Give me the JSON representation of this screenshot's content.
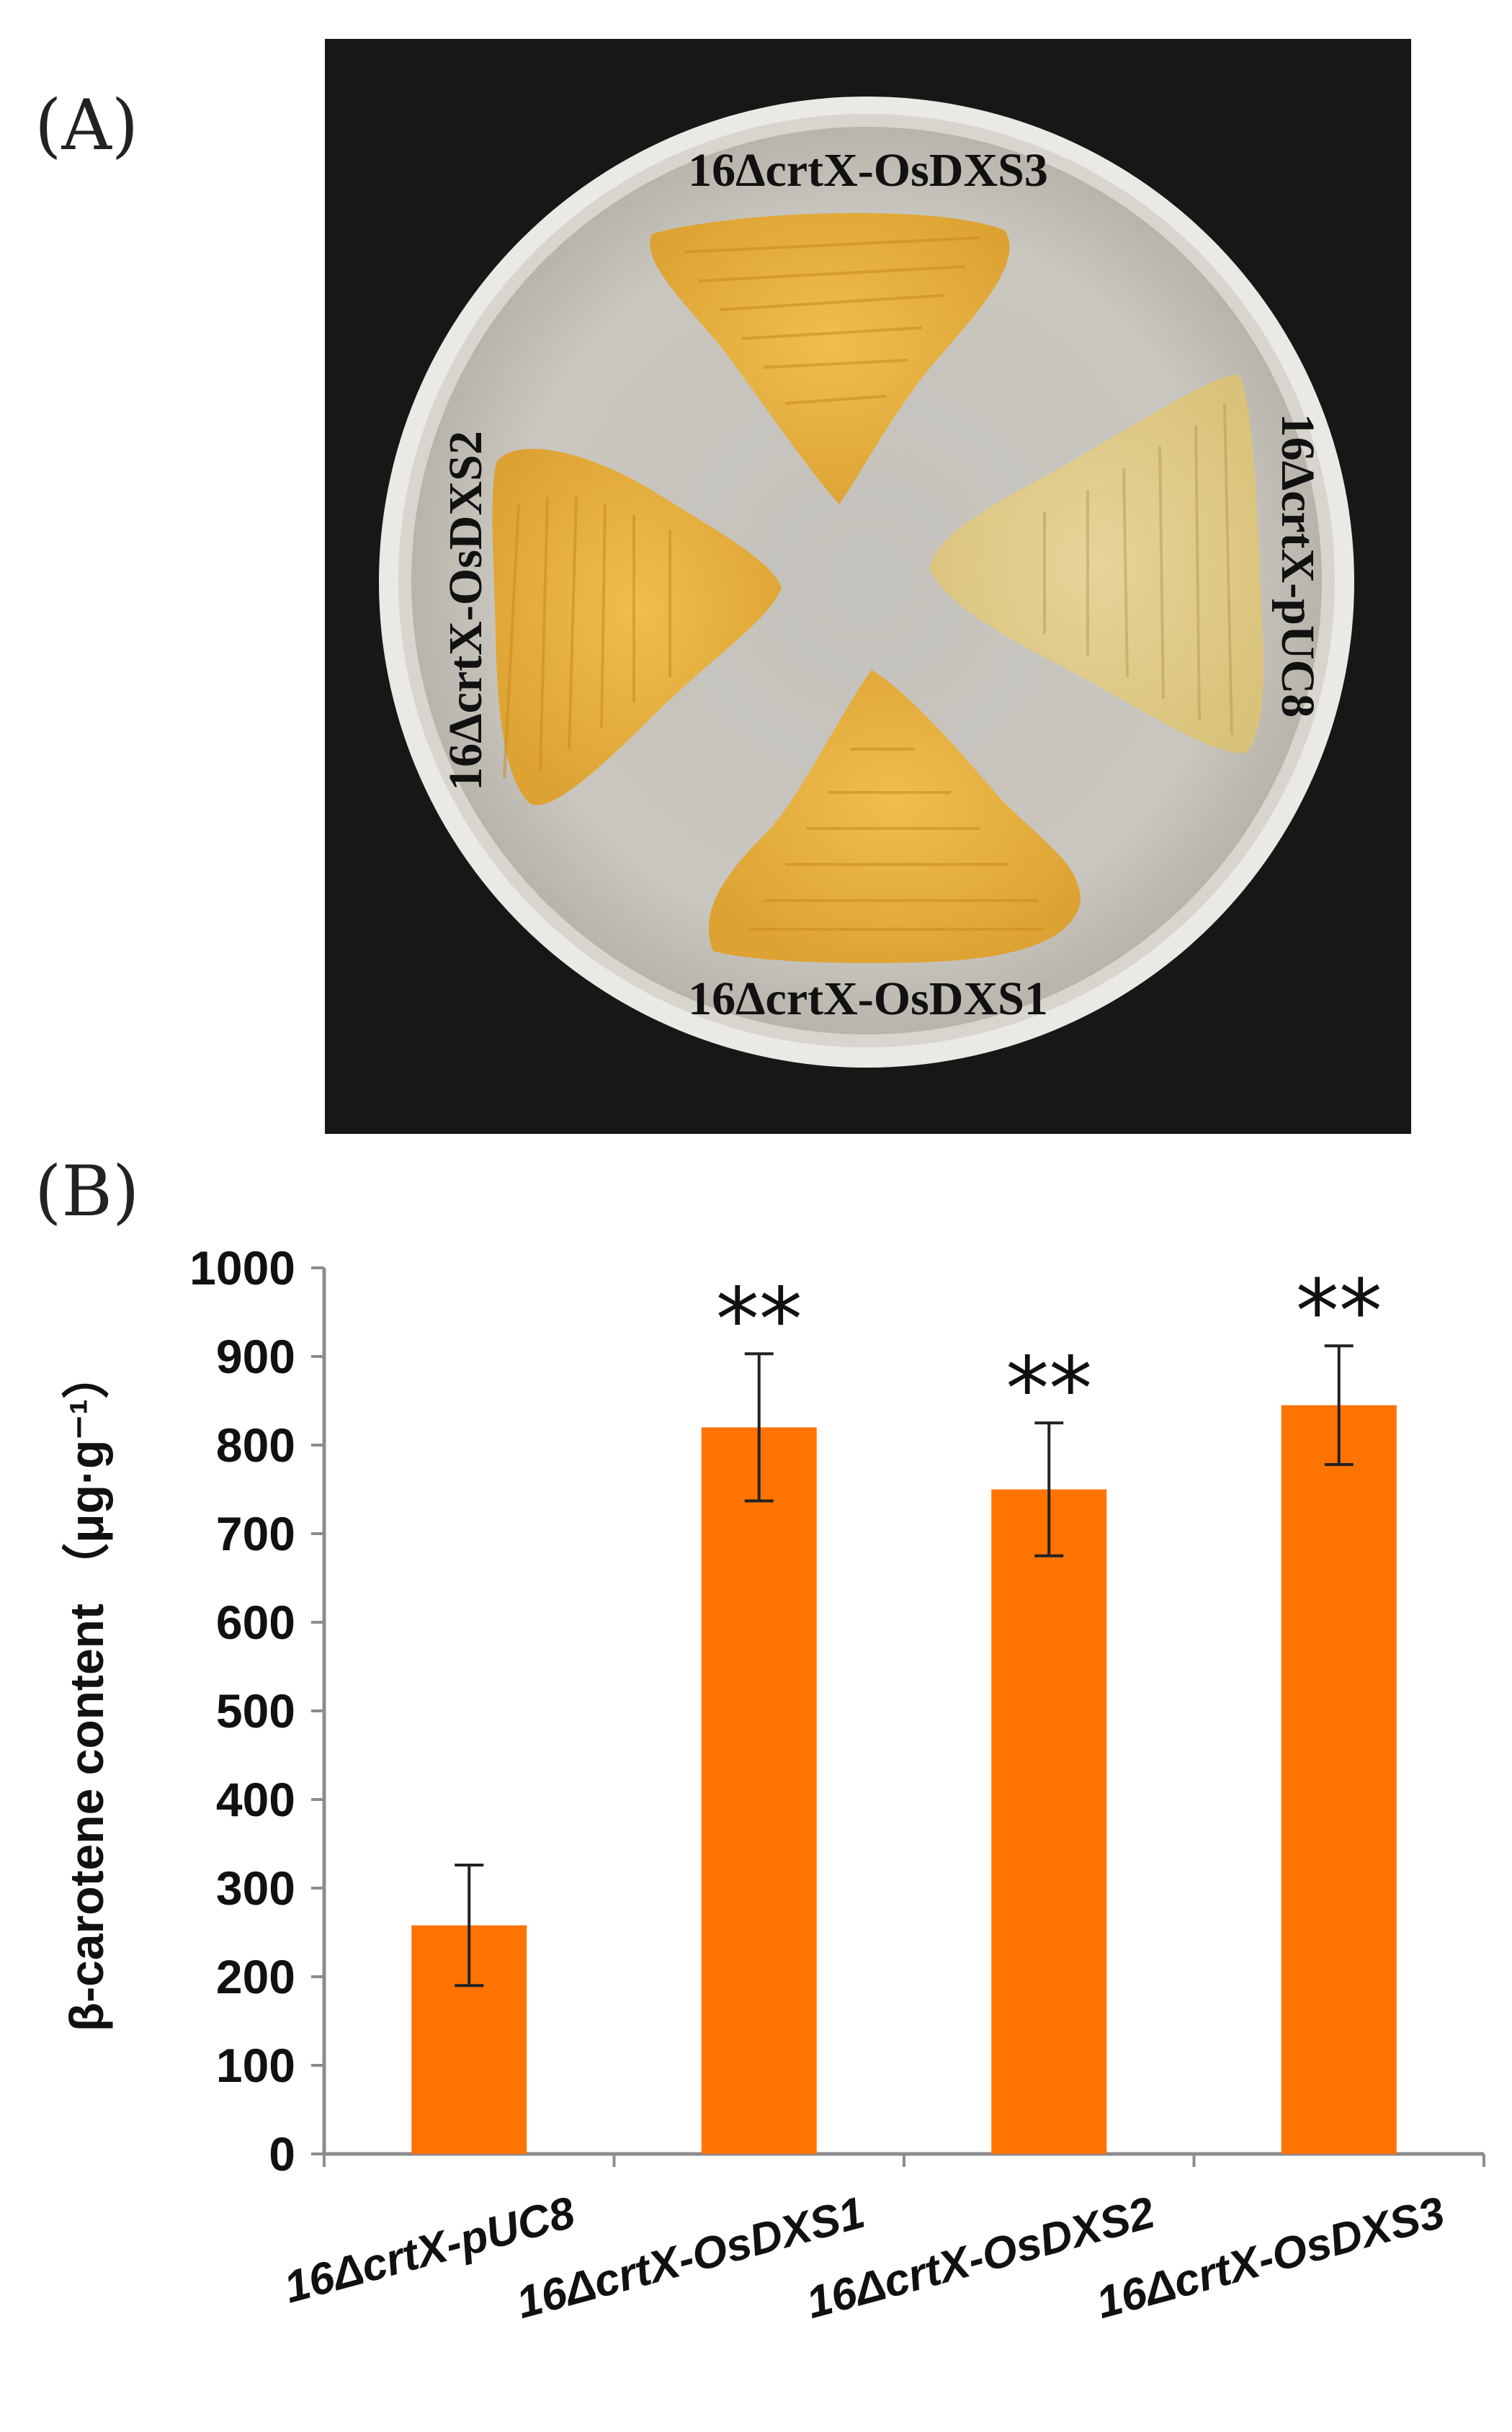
{
  "panels": {
    "a_label": "(A)",
    "b_label": "(B)"
  },
  "plate": {
    "labels": {
      "top": "16ΔcrtX-OsDXS3",
      "left": "16ΔcrtX-OsDXS2",
      "right": "16ΔcrtX-pUC8",
      "bottom": "16ΔcrtX-OsDXS1"
    },
    "colors": {
      "background": "#1a1a1a",
      "agar": "#c9c6bf",
      "colony": "#e8b23c"
    }
  },
  "chart_data": {
    "type": "bar",
    "ylabel": "β-carotene content （μg·g⁻¹）",
    "xlabel": "",
    "ylim": [
      0,
      1000
    ],
    "yticks": [
      "0",
      "100",
      "200",
      "300",
      "400",
      "500",
      "600",
      "700",
      "800",
      "900",
      "1000"
    ],
    "categories": [
      "16ΔcrtX-pUC8",
      "16ΔcrtX-OsDXS1",
      "16ΔcrtX-OsDXS2",
      "16ΔcrtX-OsDXS3"
    ],
    "values": [
      258,
      820,
      750,
      845
    ],
    "errors": [
      68,
      83,
      75,
      67
    ],
    "significance": [
      "",
      "**",
      "**",
      "**"
    ],
    "bar_color": "#ff7300",
    "grid": false,
    "legend": "none"
  }
}
